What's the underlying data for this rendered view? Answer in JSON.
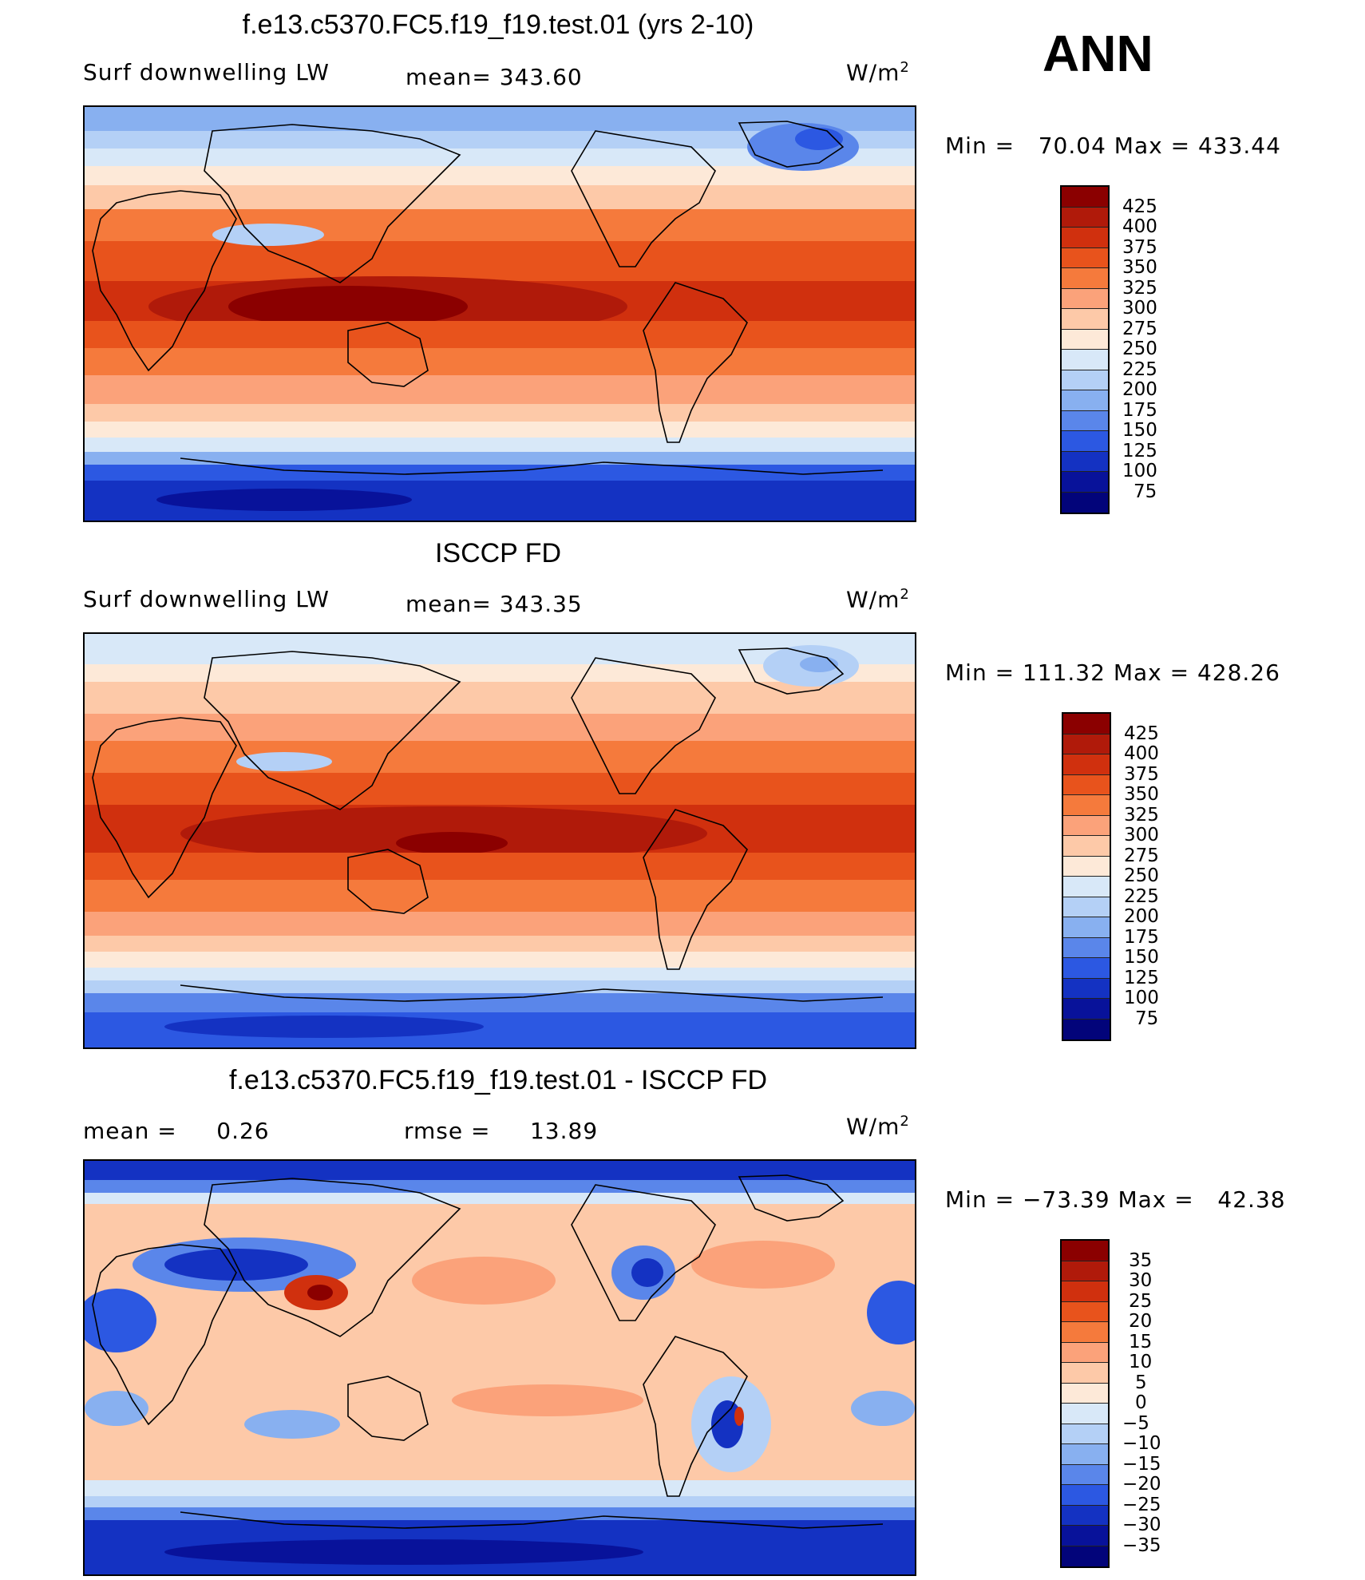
{
  "season": "ANN",
  "panels": [
    {
      "title": "f.e13.c5370.FC5.f19_f19.test.01 (yrs 2-10)",
      "left_label": "Surf downwelling LW",
      "center_label": "mean= 343.60",
      "units": "W/m",
      "units_sup": "2",
      "minmax": "Min =   70.04 Max = 433.44"
    },
    {
      "title": "ISCCP FD",
      "left_label": "Surf downwelling LW",
      "center_label": "mean= 343.35",
      "units": "W/m",
      "units_sup": "2",
      "minmax": "Min = 111.32 Max = 428.26"
    },
    {
      "title": "f.e13.c5370.FC5.f19_f19.test.01 - ISCCP FD",
      "left_label": "mean =     0.26",
      "center_label": "rmse =     13.89",
      "units": "W/m",
      "units_sup": "2",
      "minmax": "Min = −73.39 Max =   42.38"
    }
  ],
  "chart_data": [
    {
      "type": "heatmap",
      "title": "f.e13.c5370.FC5.f19_f19.test.01 (yrs 2-10)",
      "variable": "Surf downwelling LW",
      "units": "W/m2",
      "mean": 343.6,
      "min": 70.04,
      "max": 433.44,
      "colorbar_levels": [
        425,
        400,
        375,
        350,
        325,
        300,
        275,
        250,
        225,
        200,
        175,
        150,
        125,
        100,
        75
      ],
      "colorbar_colors": [
        "#8b0000",
        "#b01a0a",
        "#d0300e",
        "#e8531c",
        "#f57a3c",
        "#fba27a",
        "#fdc9a8",
        "#fde9d8",
        "#d8e8f8",
        "#b4d0f6",
        "#88b0f0",
        "#5a86ea",
        "#2c58e2",
        "#1432c2",
        "#08129a",
        "#02047a"
      ]
    },
    {
      "type": "heatmap",
      "title": "ISCCP FD",
      "variable": "Surf downwelling LW",
      "units": "W/m2",
      "mean": 343.35,
      "min": 111.32,
      "max": 428.26,
      "colorbar_levels": [
        425,
        400,
        375,
        350,
        325,
        300,
        275,
        250,
        225,
        200,
        175,
        150,
        125,
        100,
        75
      ],
      "colorbar_colors": [
        "#8b0000",
        "#b01a0a",
        "#d0300e",
        "#e8531c",
        "#f57a3c",
        "#fba27a",
        "#fdc9a8",
        "#fde9d8",
        "#d8e8f8",
        "#b4d0f6",
        "#88b0f0",
        "#5a86ea",
        "#2c58e2",
        "#1432c2",
        "#08129a",
        "#02047a"
      ]
    },
    {
      "type": "heatmap",
      "title": "f.e13.c5370.FC5.f19_f19.test.01 - ISCCP FD",
      "units": "W/m2",
      "mean": 0.26,
      "rmse": 13.89,
      "min": -73.39,
      "max": 42.38,
      "colorbar_levels": [
        35,
        30,
        25,
        20,
        15,
        10,
        5,
        0,
        -5,
        -10,
        -15,
        -20,
        -25,
        -30,
        -35
      ],
      "colorbar_colors": [
        "#8b0000",
        "#b01a0a",
        "#d0300e",
        "#e8531c",
        "#f57a3c",
        "#fba27a",
        "#fdc9a8",
        "#fde9d8",
        "#d8e8f8",
        "#b4d0f6",
        "#88b0f0",
        "#5a86ea",
        "#2c58e2",
        "#1432c2",
        "#08129a",
        "#02047a"
      ]
    }
  ]
}
